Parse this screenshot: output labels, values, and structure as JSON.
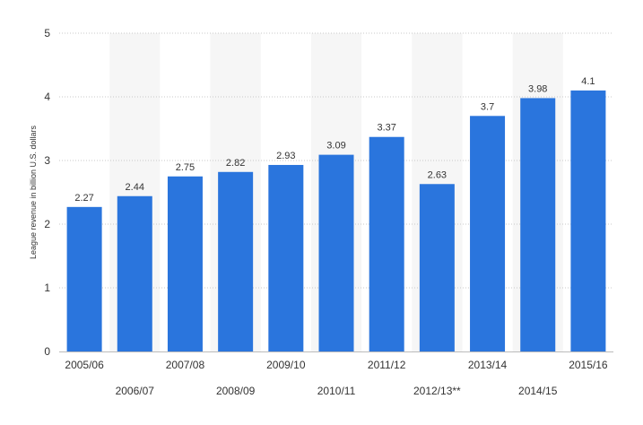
{
  "chart_data": {
    "type": "bar",
    "title": "",
    "xlabel": "",
    "ylabel": "League revenue in billion U.S. dollars",
    "ylim": [
      0,
      5
    ],
    "yticks": [
      0,
      1,
      2,
      3,
      4,
      5
    ],
    "grid": true,
    "alternating_column_shading": true,
    "categories": [
      "2005/06",
      "2006/07",
      "2007/08",
      "2008/09",
      "2009/10",
      "2010/11",
      "2011/12",
      "2012/13**",
      "2013/14",
      "2014/15",
      "2015/16"
    ],
    "values": [
      2.27,
      2.44,
      2.75,
      2.82,
      2.93,
      3.09,
      3.37,
      2.63,
      3.7,
      3.98,
      4.1
    ],
    "value_labels": [
      "2.27",
      "2.44",
      "2.75",
      "2.82",
      "2.93",
      "3.09",
      "3.37",
      "2.63",
      "3.7",
      "3.98",
      "4.1"
    ],
    "bar_color": "#2a75dd",
    "band_color": "#f6f6f6",
    "grid_color": "#c8c8c8"
  }
}
